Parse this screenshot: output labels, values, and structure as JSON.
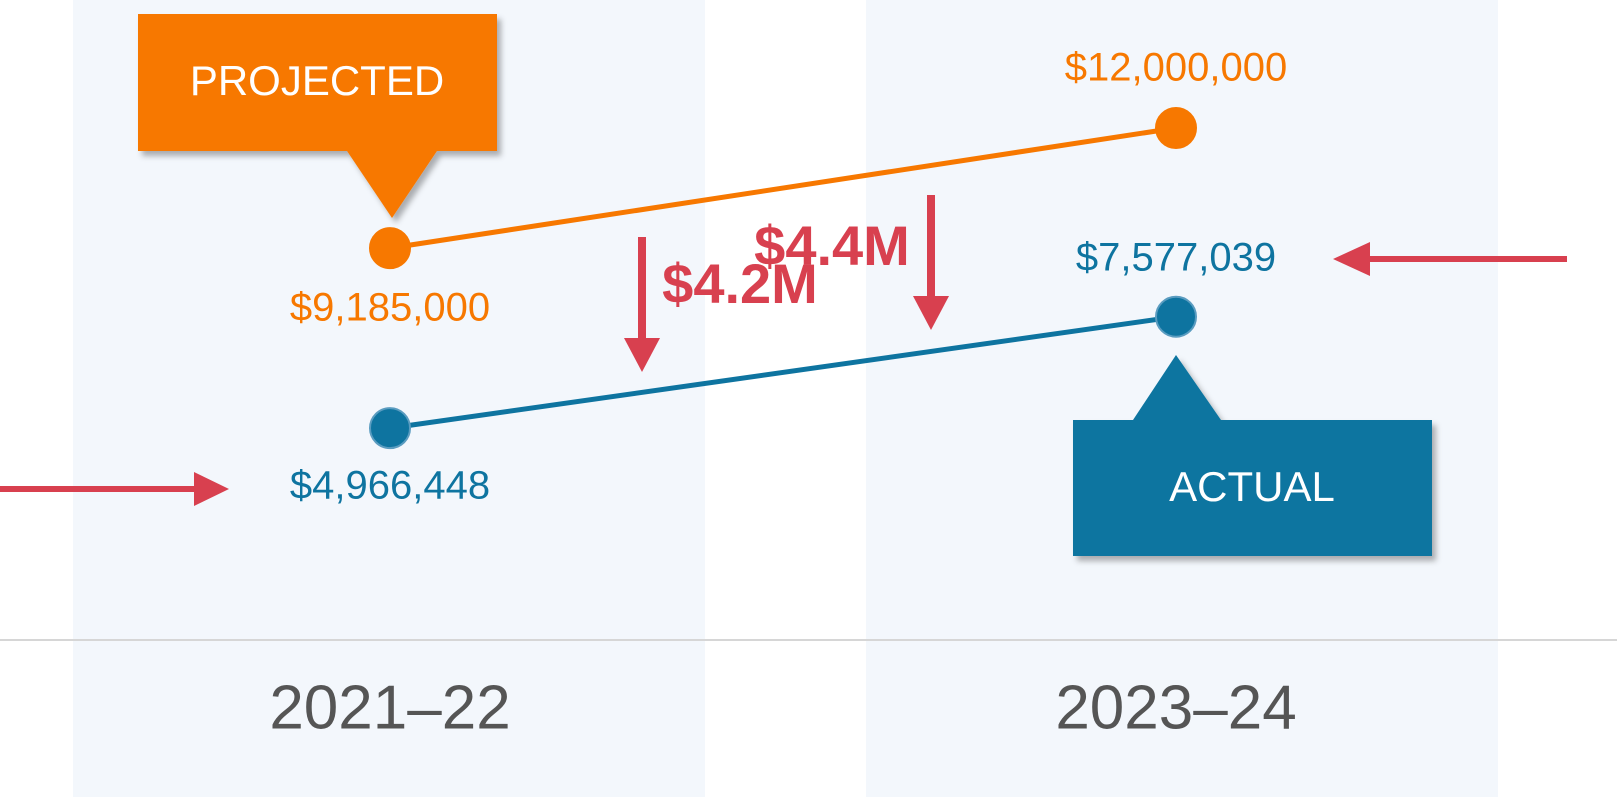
{
  "chart_data": {
    "type": "line",
    "categories": [
      "2021–22",
      "2023–24"
    ],
    "series": [
      {
        "name": "PROJECTED",
        "color": "#f77800",
        "values": [
          9185000,
          12000000
        ],
        "value_labels": [
          "$9,185,000",
          "$12,000,000"
        ]
      },
      {
        "name": "ACTUAL",
        "color": "#0e74a0",
        "values": [
          4966448,
          7577039
        ],
        "value_labels": [
          "$4,966,448",
          "$7,577,039"
        ]
      }
    ],
    "ylim": [
      0,
      15000000
    ],
    "annotations": [
      "$4.2M",
      "$4.4M"
    ],
    "annotation_color": "#d8404f"
  }
}
